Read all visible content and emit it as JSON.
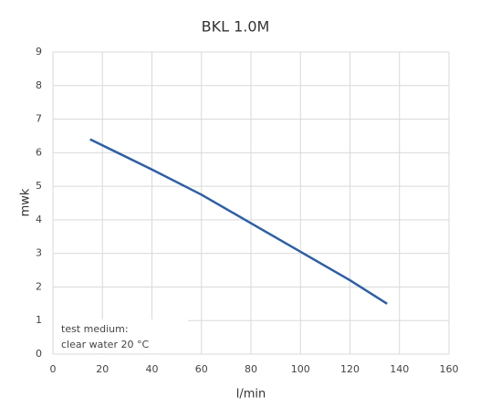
{
  "chart_data": {
    "type": "line",
    "title": "BKL 1.0M",
    "x_label": "l/min",
    "y_label": "mwk",
    "x": [
      15,
      40,
      60,
      80,
      100,
      120,
      135
    ],
    "series": [
      {
        "name": "BKL 1.0M",
        "color": "#2e5fa5",
        "values": [
          6.4,
          5.5,
          4.75,
          3.9,
          3.05,
          2.2,
          1.5
        ]
      }
    ],
    "xlim": [
      0,
      160
    ],
    "xticks": [
      0,
      20,
      40,
      60,
      80,
      100,
      120,
      140,
      160
    ],
    "ylim": [
      0,
      9
    ],
    "yticks": [
      0,
      1,
      2,
      3,
      4,
      5,
      6,
      7,
      8,
      9
    ],
    "grid": true,
    "annotation": [
      "test medium:",
      "clear water 20 °C"
    ]
  }
}
